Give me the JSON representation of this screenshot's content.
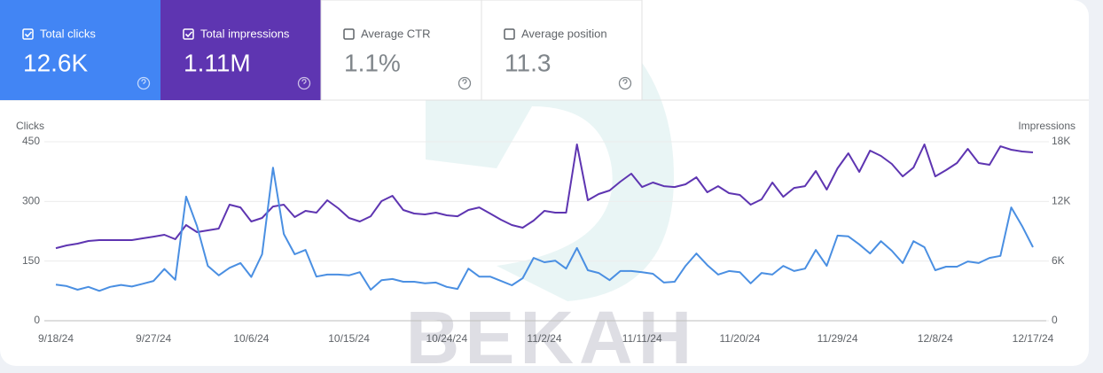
{
  "cards": [
    {
      "label": "Total clicks",
      "value": "12.6K",
      "selected": true,
      "color": "#4285f4"
    },
    {
      "label": "Total impressions",
      "value": "1.11M",
      "selected": true,
      "color": "#5e35b1"
    },
    {
      "label": "Average CTR",
      "value": "1.1%",
      "selected": false,
      "color": "#ffffff"
    },
    {
      "label": "Average position",
      "value": "11.3",
      "selected": false,
      "color": "#ffffff"
    }
  ],
  "watermark": "BEKAH",
  "chart_data": {
    "type": "line",
    "ylabel": "Clicks",
    "y2label": "Impressions",
    "categories": [
      "9/18/24",
      null,
      null,
      null,
      null,
      null,
      null,
      null,
      null,
      "9/27/24",
      null,
      null,
      null,
      null,
      null,
      null,
      null,
      null,
      "10/6/24",
      null,
      null,
      null,
      null,
      null,
      null,
      null,
      null,
      "10/15/24",
      null,
      null,
      null,
      null,
      null,
      null,
      null,
      null,
      "10/24/24",
      null,
      null,
      null,
      null,
      null,
      null,
      null,
      null,
      "11/2/24",
      null,
      null,
      null,
      null,
      null,
      null,
      null,
      null,
      "11/11/24",
      null,
      null,
      null,
      null,
      null,
      null,
      null,
      null,
      "11/20/24",
      null,
      null,
      null,
      null,
      null,
      null,
      null,
      null,
      "11/29/24",
      null,
      null,
      null,
      null,
      null,
      null,
      null,
      null,
      "12/8/24",
      null,
      null,
      null,
      null,
      null,
      null,
      null,
      null,
      "12/17/24"
    ],
    "series": [
      {
        "color": "#4a8fe2",
        "values": [
          91,
          87,
          78,
          85,
          75,
          85,
          90,
          86,
          93,
          100,
          130,
          103,
          312,
          238,
          138,
          114,
          133,
          145,
          110,
          167,
          385,
          218,
          167,
          178,
          111,
          116,
          116,
          114,
          122,
          78,
          102,
          105,
          98,
          98,
          94,
          96,
          85,
          80,
          131,
          111,
          111,
          100,
          89,
          107,
          158,
          147,
          151,
          131,
          183,
          127,
          120,
          102,
          125,
          125,
          122,
          118,
          96,
          98,
          138,
          169,
          140,
          116,
          125,
          122,
          94,
          120,
          116,
          138,
          125,
          131,
          178,
          138,
          214,
          212,
          192,
          169,
          200,
          176,
          145,
          200,
          185,
          127,
          136,
          136,
          149,
          145,
          158,
          163,
          285,
          238,
          185
        ]
      },
      {
        "color": "#5e35b1",
        "axis": "y2",
        "values": [
          7300,
          7570,
          7750,
          8020,
          8110,
          8110,
          8110,
          8110,
          8290,
          8460,
          8640,
          8200,
          9620,
          8910,
          9090,
          9270,
          11670,
          11400,
          9980,
          10340,
          11490,
          11670,
          10430,
          11050,
          10870,
          12120,
          11320,
          10340,
          9980,
          10510,
          12030,
          12560,
          11140,
          10780,
          10690,
          10870,
          10600,
          10510,
          11140,
          11400,
          10780,
          10160,
          9620,
          9360,
          10070,
          11050,
          10870,
          10870,
          17730,
          12120,
          12740,
          13100,
          13990,
          14790,
          13450,
          13900,
          13540,
          13450,
          13720,
          14430,
          12920,
          13540,
          12830,
          12650,
          11670,
          12210,
          13900,
          12470,
          13360,
          13540,
          15060,
          13190,
          15330,
          16840,
          14970,
          17110,
          16570,
          15770,
          14520,
          15410,
          17730,
          14520,
          15150,
          15860,
          17290,
          15860,
          15680,
          17550,
          17200,
          17020,
          16930
        ]
      }
    ],
    "ylim": [
      0,
      450
    ],
    "yticks": [
      0,
      150,
      300,
      450
    ],
    "y2lim": [
      0,
      18000
    ],
    "y2ticks": [
      0,
      {
        "value": 6000,
        "label": "6K"
      },
      {
        "value": 12000,
        "label": "12K"
      },
      {
        "value": 18000,
        "label": "18K"
      }
    ],
    "grid": true
  }
}
